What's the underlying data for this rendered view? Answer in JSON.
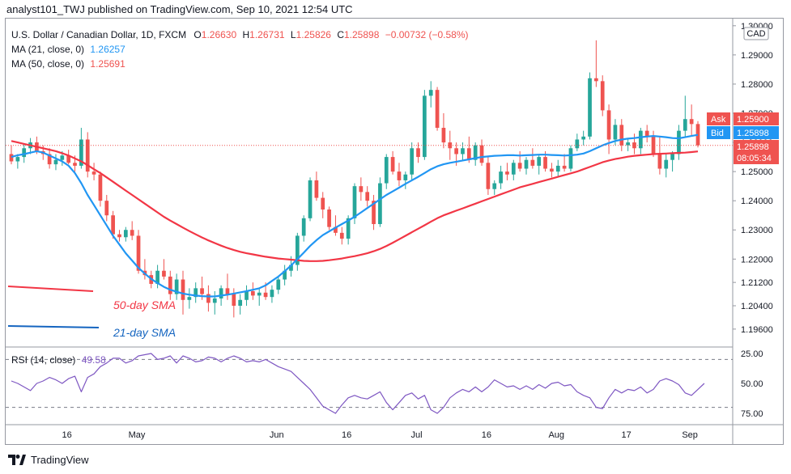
{
  "header": {
    "text": "analyst101_TWJ published on TradingView.com, Sep 10, 2021 12:54 UTC"
  },
  "legend": {
    "symbol": "U.S. Dollar / Canadian Dollar, 1D, FXCM",
    "o_label": "O",
    "o_value": "1.26630",
    "h_label": "H",
    "h_value": "1.26731",
    "l_label": "L",
    "l_value": "1.25826",
    "c_label": "C",
    "c_value": "1.25898",
    "change": "−0.00732 (−0.58%)",
    "ma21_label": "MA (21, close, 0)",
    "ma21_value": "1.26257",
    "ma50_label": "MA (50, close, 0)",
    "ma50_value": "1.25691",
    "rsi_label": "RSI (14, close)",
    "rsi_value": "49.58"
  },
  "annotations": {
    "sma50": "50-day SMA",
    "sma21": "21-day SMA"
  },
  "price_tags": {
    "currency": "CAD",
    "ask_label": "Ask",
    "ask_value": "1.25900",
    "bid_label": "Bid",
    "bid_value": "1.25898",
    "last_value": "1.25898",
    "countdown": "08:05:34"
  },
  "footer": {
    "brand": "TradingView"
  },
  "colors": {
    "up": "#26a69a",
    "down": "#ef5350",
    "ma21": "#2196f3",
    "ma50": "#f23645",
    "rsi": "#7e57c2",
    "rsi_band": "#ede7f6"
  },
  "chart_data": {
    "type": "candlestick",
    "price_axis": {
      "ticks": [
        "1.30000",
        "1.29000",
        "1.28000",
        "1.27000",
        "1.26000",
        "1.25000",
        "1.24000",
        "1.23000",
        "1.22000",
        "1.21200",
        "1.20400",
        "1.19600"
      ]
    },
    "rsi_axis": {
      "ticks": [
        "75.00",
        "50.00",
        "25.00"
      ],
      "band": [
        30,
        70
      ]
    },
    "x_tick_labels": [
      "16",
      "May",
      "Jun",
      "16",
      "Jul",
      "16",
      "Aug",
      "17",
      "Sep"
    ],
    "candles": [
      [
        1.256,
        1.259,
        1.2525,
        1.2535
      ],
      [
        1.2535,
        1.256,
        1.251,
        1.255
      ],
      [
        1.255,
        1.2595,
        1.253,
        1.258
      ],
      [
        1.258,
        1.2615,
        1.256,
        1.26
      ],
      [
        1.26,
        1.262,
        1.256,
        1.257
      ],
      [
        1.257,
        1.259,
        1.254,
        1.256
      ],
      [
        1.256,
        1.258,
        1.251,
        1.2525
      ],
      [
        1.2525,
        1.256,
        1.2505,
        1.254
      ],
      [
        1.254,
        1.257,
        1.252,
        1.2555
      ],
      [
        1.2555,
        1.2575,
        1.2525,
        1.253
      ],
      [
        1.253,
        1.2555,
        1.25,
        1.252
      ],
      [
        1.252,
        1.265,
        1.251,
        1.261
      ],
      [
        1.261,
        1.2635,
        1.248,
        1.25
      ],
      [
        1.25,
        1.253,
        1.247,
        1.249
      ],
      [
        1.249,
        1.25,
        1.238,
        1.24
      ],
      [
        1.24,
        1.242,
        1.233,
        1.235
      ],
      [
        1.235,
        1.2365,
        1.227,
        1.2285
      ],
      [
        1.2285,
        1.23,
        1.226,
        1.2275
      ],
      [
        1.2275,
        1.231,
        1.226,
        1.23
      ],
      [
        1.23,
        1.233,
        1.2265,
        1.228
      ],
      [
        1.228,
        1.23,
        1.215,
        1.216
      ],
      [
        1.216,
        1.22,
        1.213,
        1.2145
      ],
      [
        1.2145,
        1.216,
        1.21,
        1.2115
      ],
      [
        1.2115,
        1.218,
        1.21,
        1.216
      ],
      [
        1.216,
        1.22,
        1.213,
        1.214
      ],
      [
        1.214,
        1.216,
        1.206,
        1.208
      ],
      [
        1.208,
        1.215,
        1.206,
        1.213
      ],
      [
        1.213,
        1.216,
        1.201,
        1.206
      ],
      [
        1.206,
        1.21,
        1.203,
        1.207
      ],
      [
        1.207,
        1.212,
        1.205,
        1.21
      ],
      [
        1.21,
        1.214,
        1.206,
        1.208
      ],
      [
        1.208,
        1.211,
        1.202,
        1.205
      ],
      [
        1.205,
        1.209,
        1.201,
        1.2065
      ],
      [
        1.2065,
        1.211,
        1.204,
        1.21
      ],
      [
        1.21,
        1.215,
        1.206,
        1.208
      ],
      [
        1.208,
        1.21,
        1.2,
        1.204
      ],
      [
        1.204,
        1.208,
        1.201,
        1.206
      ],
      [
        1.206,
        1.211,
        1.204,
        1.209
      ],
      [
        1.209,
        1.212,
        1.206,
        1.2075
      ],
      [
        1.2075,
        1.21,
        1.204,
        1.2085
      ],
      [
        1.2085,
        1.212,
        1.206,
        1.207
      ],
      [
        1.207,
        1.211,
        1.205,
        1.2095
      ],
      [
        1.2095,
        1.214,
        1.208,
        1.213
      ],
      [
        1.213,
        1.218,
        1.211,
        1.216
      ],
      [
        1.216,
        1.221,
        1.214,
        1.218
      ],
      [
        1.218,
        1.229,
        1.216,
        1.228
      ],
      [
        1.228,
        1.235,
        1.226,
        1.234
      ],
      [
        1.234,
        1.248,
        1.233,
        1.247
      ],
      [
        1.247,
        1.25,
        1.24,
        1.241
      ],
      [
        1.241,
        1.243,
        1.234,
        1.237
      ],
      [
        1.237,
        1.238,
        1.23,
        1.231
      ],
      [
        1.231,
        1.235,
        1.228,
        1.229
      ],
      [
        1.229,
        1.231,
        1.225,
        1.227
      ],
      [
        1.227,
        1.235,
        1.225,
        1.234
      ],
      [
        1.234,
        1.246,
        1.232,
        1.245
      ],
      [
        1.245,
        1.248,
        1.24,
        1.243
      ],
      [
        1.243,
        1.245,
        1.238,
        1.24
      ],
      [
        1.24,
        1.242,
        1.23,
        1.232
      ],
      [
        1.232,
        1.248,
        1.231,
        1.246
      ],
      [
        1.246,
        1.256,
        1.244,
        1.255
      ],
      [
        1.255,
        1.257,
        1.249,
        1.25
      ],
      [
        1.25,
        1.253,
        1.245,
        1.247
      ],
      [
        1.247,
        1.25,
        1.244,
        1.249
      ],
      [
        1.249,
        1.26,
        1.247,
        1.258
      ],
      [
        1.258,
        1.26,
        1.253,
        1.255
      ],
      [
        1.255,
        1.278,
        1.254,
        1.276
      ],
      [
        1.276,
        1.281,
        1.272,
        1.278
      ],
      [
        1.278,
        1.279,
        1.264,
        1.265
      ],
      [
        1.265,
        1.27,
        1.258,
        1.26
      ],
      [
        1.26,
        1.264,
        1.254,
        1.258
      ],
      [
        1.258,
        1.26,
        1.252,
        1.256
      ],
      [
        1.256,
        1.26,
        1.254,
        1.258
      ],
      [
        1.258,
        1.262,
        1.253,
        1.254
      ],
      [
        1.254,
        1.26,
        1.252,
        1.259
      ],
      [
        1.259,
        1.261,
        1.252,
        1.253
      ],
      [
        1.253,
        1.255,
        1.242,
        1.244
      ],
      [
        1.244,
        1.247,
        1.242,
        1.246
      ],
      [
        1.246,
        1.252,
        1.244,
        1.25
      ],
      [
        1.25,
        1.253,
        1.247,
        1.249
      ],
      [
        1.249,
        1.254,
        1.247,
        1.253
      ],
      [
        1.253,
        1.257,
        1.25,
        1.251
      ],
      [
        1.251,
        1.255,
        1.249,
        1.254
      ],
      [
        1.254,
        1.258,
        1.251,
        1.252
      ],
      [
        1.252,
        1.256,
        1.249,
        1.255
      ],
      [
        1.255,
        1.257,
        1.25,
        1.251
      ],
      [
        1.251,
        1.253,
        1.248,
        1.25
      ],
      [
        1.25,
        1.254,
        1.248,
        1.252
      ],
      [
        1.252,
        1.256,
        1.25,
        1.251
      ],
      [
        1.251,
        1.259,
        1.25,
        1.258
      ],
      [
        1.258,
        1.263,
        1.257,
        1.261
      ],
      [
        1.261,
        1.264,
        1.259,
        1.262
      ],
      [
        1.262,
        1.284,
        1.261,
        1.282
      ],
      [
        1.282,
        1.295,
        1.279,
        1.281
      ],
      [
        1.281,
        1.283,
        1.269,
        1.271
      ],
      [
        1.271,
        1.273,
        1.256,
        1.261
      ],
      [
        1.261,
        1.268,
        1.259,
        1.266
      ],
      [
        1.266,
        1.268,
        1.257,
        1.259
      ],
      [
        1.259,
        1.261,
        1.257,
        1.26
      ],
      [
        1.26,
        1.263,
        1.256,
        1.258
      ],
      [
        1.258,
        1.265,
        1.256,
        1.264
      ],
      [
        1.264,
        1.266,
        1.26,
        1.262
      ],
      [
        1.262,
        1.264,
        1.255,
        1.256
      ],
      [
        1.256,
        1.262,
        1.249,
        1.251
      ],
      [
        1.251,
        1.256,
        1.248,
        1.254
      ],
      [
        1.254,
        1.257,
        1.25,
        1.256
      ],
      [
        1.256,
        1.266,
        1.254,
        1.264
      ],
      [
        1.264,
        1.276,
        1.262,
        1.268
      ],
      [
        1.268,
        1.273,
        1.262,
        1.2663
      ],
      [
        1.2663,
        1.2673,
        1.2583,
        1.259
      ]
    ],
    "ma21": [
      1.255,
      1.2556,
      1.256,
      1.2565,
      1.257,
      1.2565,
      1.2555,
      1.2545,
      1.2535,
      1.252,
      1.2495,
      1.246,
      1.242,
      1.2385,
      1.235,
      1.2315,
      1.228,
      1.225,
      1.222,
      1.2195,
      1.217,
      1.215,
      1.2132,
      1.2118,
      1.2105,
      1.2095,
      1.2088,
      1.2082,
      1.2078,
      1.2075,
      1.2073,
      1.2072,
      1.2072,
      1.2075,
      1.2078,
      1.2082,
      1.2086,
      1.209,
      1.2095,
      1.21,
      1.211,
      1.2125,
      1.214,
      1.2158,
      1.2178,
      1.22,
      1.2222,
      1.2245,
      1.2265,
      1.2282,
      1.2295,
      1.2308,
      1.232,
      1.2332,
      1.2345,
      1.236,
      1.2375,
      1.239,
      1.2405,
      1.242,
      1.2432,
      1.2445,
      1.2458,
      1.247,
      1.2482,
      1.2495,
      1.2508,
      1.2518,
      1.2525,
      1.253,
      1.2534,
      1.2538,
      1.2542,
      1.2546,
      1.255,
      1.2552,
      1.2554,
      1.2555,
      1.2556,
      1.2556,
      1.2555,
      1.2556,
      1.2557,
      1.2558,
      1.2558,
      1.2557,
      1.2556,
      1.2555,
      1.2556,
      1.2558,
      1.2562,
      1.257,
      1.258,
      1.259,
      1.2598,
      1.2605,
      1.261,
      1.2613,
      1.2615,
      1.2618,
      1.262,
      1.2622,
      1.262,
      1.2618,
      1.2615,
      1.2614,
      1.2618,
      1.2622,
      1.2626
    ],
    "ma50": [
      1.2605,
      1.26,
      1.2595,
      1.259,
      1.2585,
      1.258,
      1.2575,
      1.257,
      1.2563,
      1.2555,
      1.2545,
      1.2535,
      1.2522,
      1.2508,
      1.2495,
      1.248,
      1.2465,
      1.245,
      1.2435,
      1.242,
      1.2405,
      1.239,
      1.2375,
      1.236,
      1.2345,
      1.2332,
      1.232,
      1.2308,
      1.2296,
      1.2285,
      1.2274,
      1.2264,
      1.2255,
      1.2246,
      1.2238,
      1.2231,
      1.2225,
      1.222,
      1.2216,
      1.2212,
      1.2208,
      1.2205,
      1.2202,
      1.22,
      1.2198,
      1.2196,
      1.2194,
      1.2193,
      1.2193,
      1.2194,
      1.2196,
      1.2199,
      1.2202,
      1.2206,
      1.221,
      1.2215,
      1.222,
      1.2227,
      1.2235,
      1.2245,
      1.2256,
      1.2268,
      1.228,
      1.2292,
      1.2304,
      1.2316,
      1.2328,
      1.234,
      1.235,
      1.2358,
      1.2366,
      1.2374,
      1.2382,
      1.239,
      1.2398,
      1.2406,
      1.2414,
      1.2422,
      1.243,
      1.2438,
      1.2446,
      1.2452,
      1.2458,
      1.2464,
      1.247,
      1.2476,
      1.2482,
      1.2488,
      1.2494,
      1.25,
      1.2508,
      1.2516,
      1.2524,
      1.2532,
      1.2538,
      1.2543,
      1.2547,
      1.2551,
      1.2554,
      1.2556,
      1.2558,
      1.256,
      1.2561,
      1.2562,
      1.2563,
      1.2564,
      1.2565,
      1.2567,
      1.2569
    ],
    "rsi": [
      48,
      50,
      53,
      56,
      50,
      48,
      45,
      47,
      50,
      46,
      44,
      57,
      45,
      42,
      36,
      33,
      29,
      29,
      33,
      31,
      27,
      26,
      25,
      30,
      29,
      27,
      33,
      27,
      29,
      32,
      31,
      28,
      29,
      32,
      29,
      27,
      29,
      32,
      31,
      32,
      30,
      33,
      36,
      38,
      40,
      45,
      50,
      55,
      62,
      69,
      72,
      75,
      68,
      62,
      60,
      62,
      63,
      60,
      57,
      66,
      72,
      66,
      60,
      58,
      63,
      60,
      72,
      75,
      70,
      62,
      58,
      55,
      57,
      53,
      57,
      53,
      47,
      50,
      53,
      52,
      55,
      52,
      55,
      51,
      54,
      50,
      49,
      52,
      51,
      57,
      60,
      62,
      70,
      71,
      62,
      55,
      58,
      55,
      56,
      53,
      58,
      55,
      48,
      46,
      48,
      51,
      58,
      60,
      55,
      50
    ]
  }
}
